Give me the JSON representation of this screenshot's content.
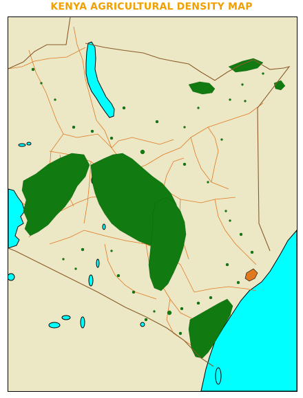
{
  "map": {
    "title": "KENYA AGRICULTURAL DENSITY MAP",
    "colors": {
      "land": "#ece8c6",
      "water": "#00ffff",
      "agriculture": "#117a11",
      "county_boundary": "#e07820",
      "national_boundary": "#8a5a2a",
      "coastline": "#000000",
      "title": "#f0a000"
    },
    "layers": [
      "land",
      "lakes",
      "ocean",
      "county-boundaries",
      "agricultural-areas",
      "national-border"
    ]
  }
}
